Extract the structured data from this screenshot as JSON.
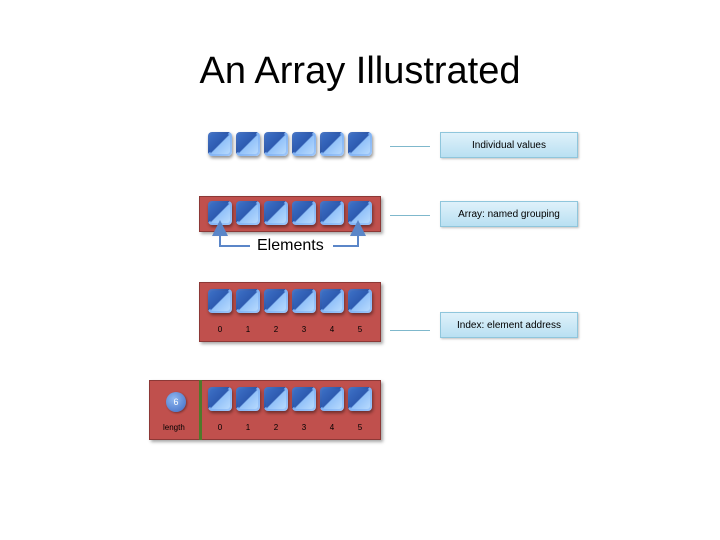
{
  "title": "An Array Illustrated",
  "rows": {
    "individual": {
      "label": "Individual values"
    },
    "array": {
      "label": "Array: named grouping",
      "elements_label": "Elements"
    },
    "index": {
      "label": "Index: element address",
      "indices": [
        "0",
        "1",
        "2",
        "3",
        "4",
        "5"
      ]
    },
    "length": {
      "length_value": "6",
      "length_label": "length",
      "indices": [
        "0",
        "1",
        "2",
        "3",
        "4",
        "5"
      ]
    }
  },
  "colors": {
    "array_fill": "#c0504d",
    "box_blue": "#4f81bd",
    "label_fill": "#c6e6f5",
    "divider": "#4e7a2a"
  }
}
